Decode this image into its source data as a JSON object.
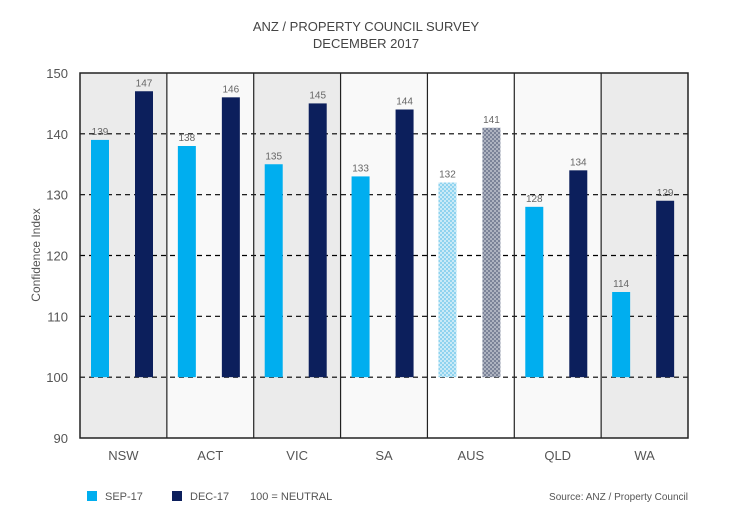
{
  "chart_data": {
    "type": "bar",
    "title": "ANZ / PROPERTY COUNCIL SURVEY",
    "subtitle": "DECEMBER 2017",
    "ylabel": "Confidence Index",
    "xlabel": "",
    "ylim": [
      90,
      150
    ],
    "yticks": [
      90,
      100,
      110,
      120,
      130,
      140,
      150
    ],
    "baseline": 100,
    "grid": "dashed horizontal",
    "categories": [
      "NSW",
      "ACT",
      "VIC",
      "SA",
      "AUS",
      "QLD",
      "WA"
    ],
    "highlight_category": "AUS",
    "series": [
      {
        "name": "SEP-17",
        "color": "#00aeef",
        "values": [
          139,
          138,
          135,
          133,
          132,
          128,
          114
        ]
      },
      {
        "name": "DEC-17",
        "color": "#0c1f5c",
        "values": [
          147,
          146,
          145,
          144,
          141,
          134,
          129
        ]
      }
    ],
    "legend_position": "bottom-left",
    "legend_note": "100 = NEUTRAL",
    "source": "Source: ANZ / Property Council"
  }
}
